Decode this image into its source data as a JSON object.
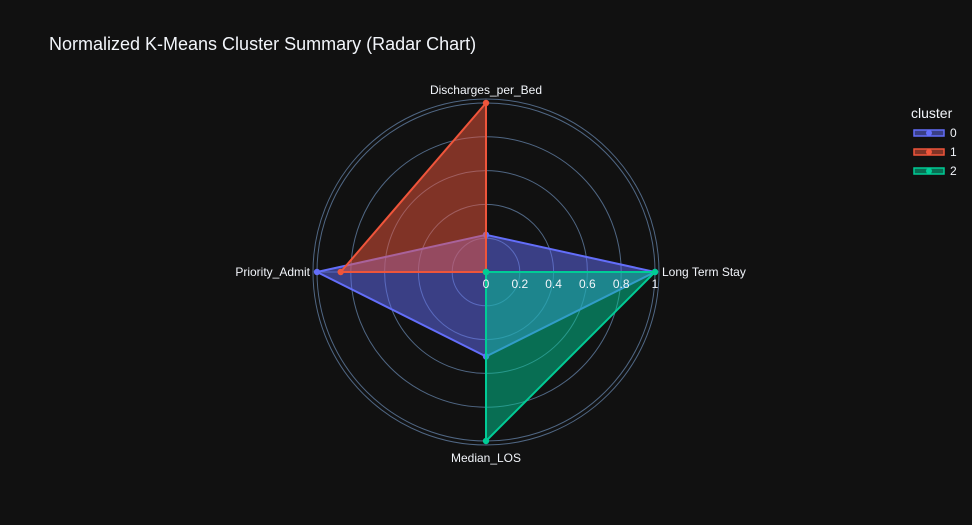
{
  "chart_data": {
    "type": "radar",
    "title": "Normalized K-Means Cluster Summary (Radar Chart)",
    "axes": [
      "Long Term Stay",
      "Discharges_per_Bed",
      "Priority_Admit",
      "Median_LOS"
    ],
    "radial_range": [
      0,
      1
    ],
    "radial_ticks": [
      "0",
      "0.2",
      "0.4",
      "0.6",
      "0.8",
      "1"
    ],
    "radial_tick_values": [
      0,
      0.2,
      0.4,
      0.6,
      0.8,
      1
    ],
    "legend_title": "cluster",
    "legend_position": "top-right",
    "grid": true,
    "series": [
      {
        "name": "0",
        "color": "#636efa",
        "values": [
          1.0,
          0.22,
          1.0,
          0.5
        ]
      },
      {
        "name": "1",
        "color": "#ef553b",
        "values": [
          0.0,
          1.0,
          0.86,
          0.0
        ]
      },
      {
        "name": "2",
        "color": "#00cc96",
        "values": [
          1.0,
          0.0,
          0.0,
          1.0
        ]
      }
    ]
  }
}
